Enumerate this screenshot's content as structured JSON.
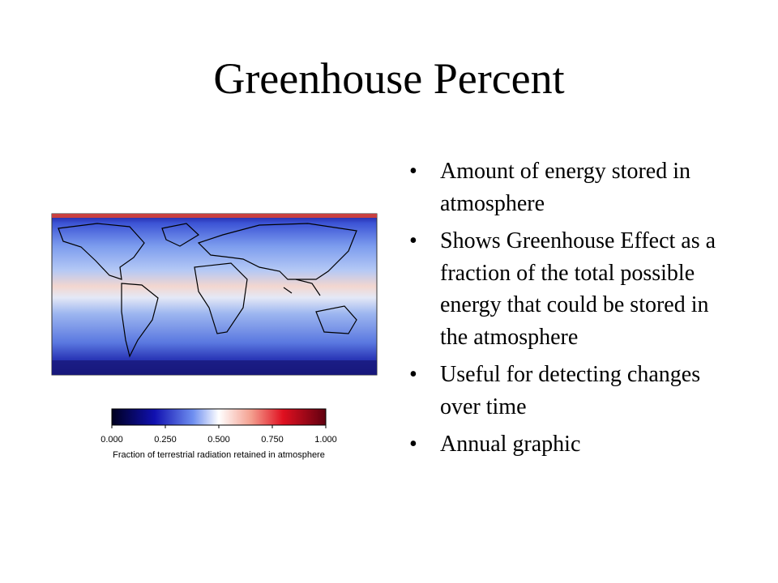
{
  "title": "Greenhouse Percent",
  "bullets": [
    "Amount of energy stored in atmosphere",
    "Shows Greenhouse Effect as a fraction of the total possible energy that could be stored in the atmosphere",
    "Useful for detecting changes over time",
    "Annual graphic"
  ],
  "colorbar": {
    "ticks": [
      {
        "value": 0,
        "label": "0.000"
      },
      {
        "value": 0.25,
        "label": "0.250"
      },
      {
        "value": 0.5,
        "label": "0.500"
      },
      {
        "value": 0.75,
        "label": "0.750"
      },
      {
        "value": 1,
        "label": "1.000"
      }
    ],
    "label": "Fraction of terrestrial radiation retained in atmosphere"
  }
}
